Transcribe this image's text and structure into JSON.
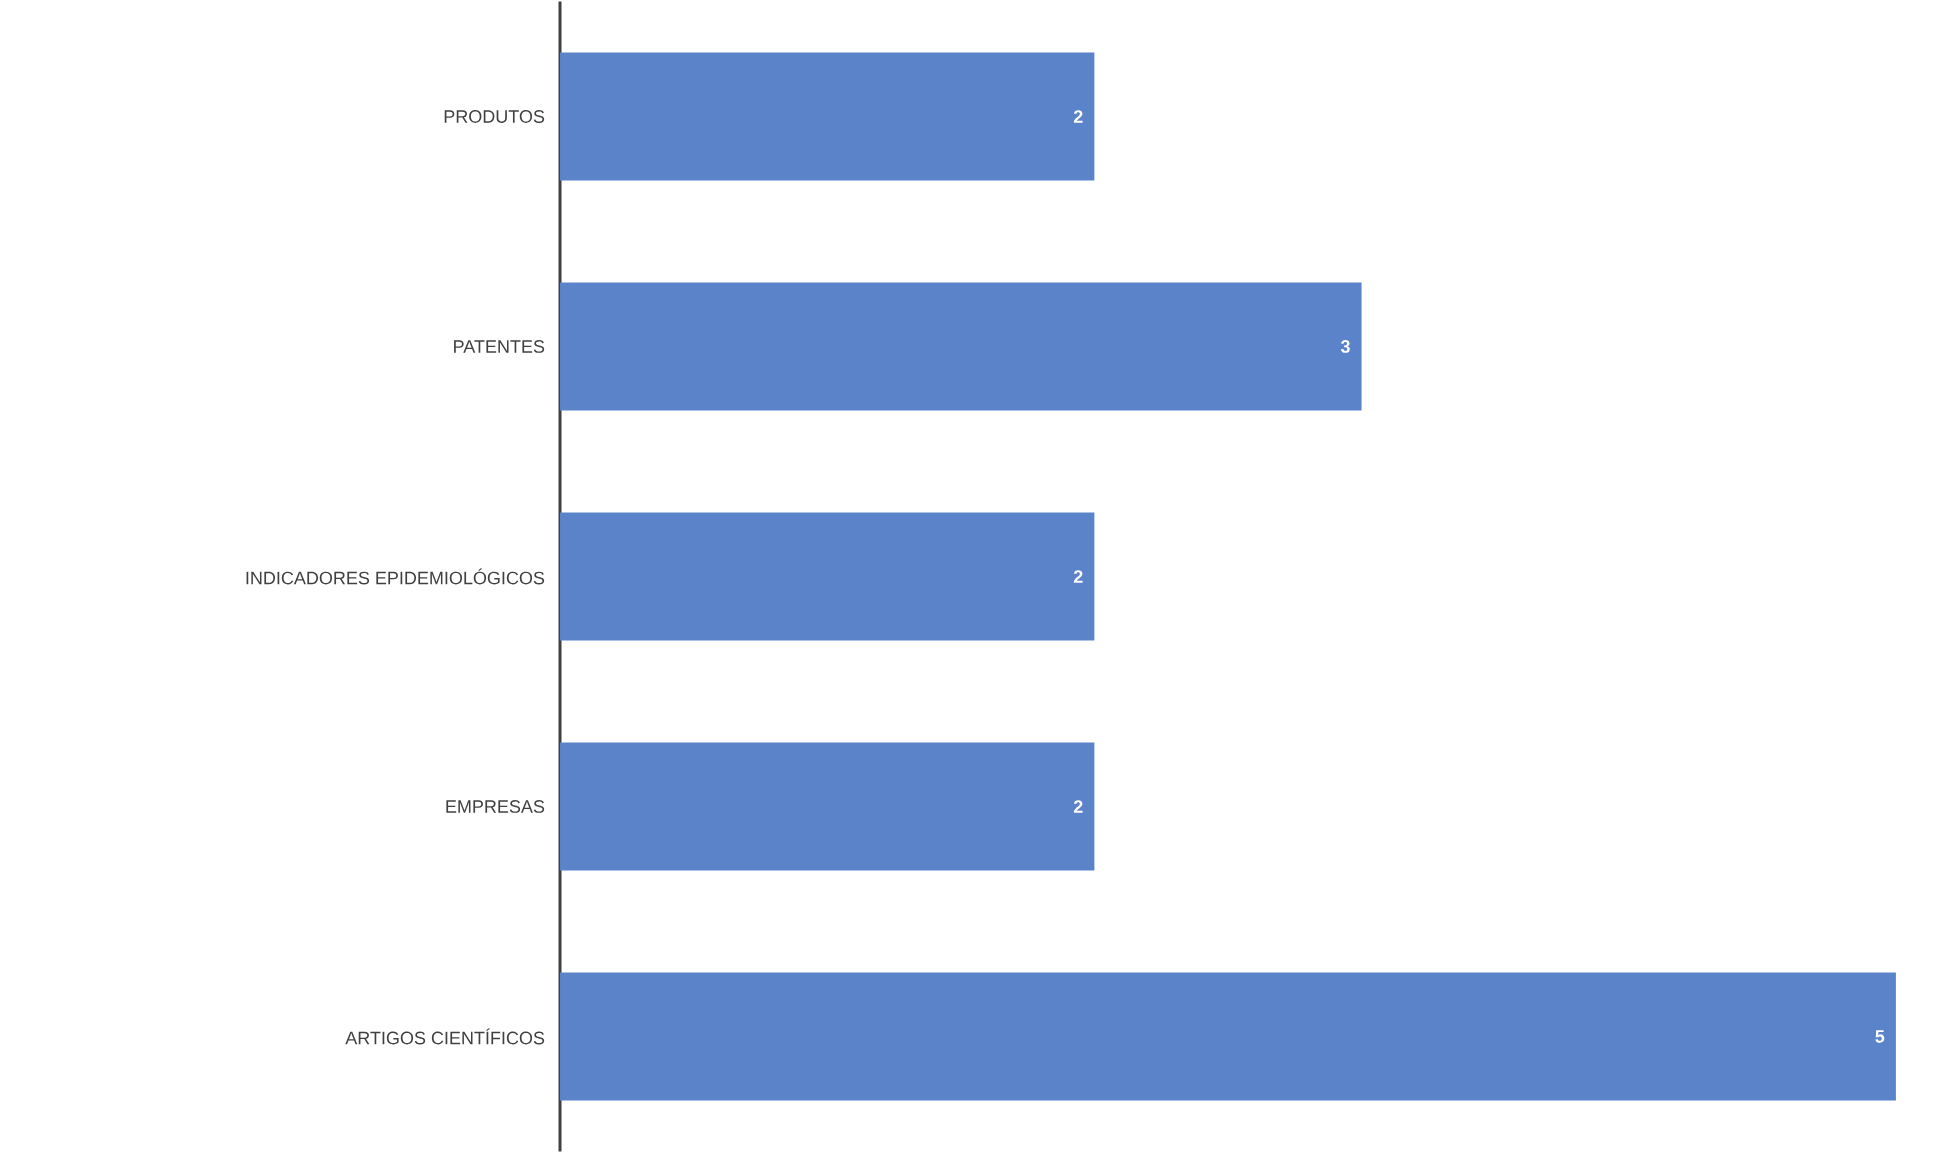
{
  "chart_data": {
    "type": "bar",
    "orientation": "horizontal",
    "categories": [
      "PRODUTOS",
      "PATENTES",
      "INDICADORES EPIDEMIOLÓGICOS",
      "EMPRESAS",
      "ARTIGOS CIENTÍFICOS"
    ],
    "values": [
      2,
      3,
      2,
      2,
      5
    ],
    "color": "#5b83c9",
    "data_labels": true
  }
}
